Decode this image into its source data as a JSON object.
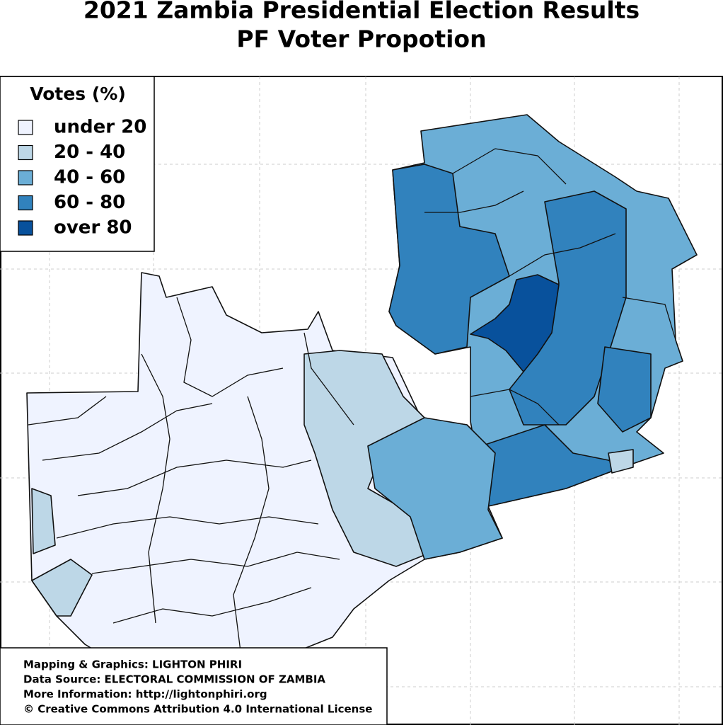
{
  "title": [
    "2021 Zambia Presidential Election Results",
    "PF Voter Propotion"
  ],
  "legend": {
    "title": "Votes (%)",
    "items": [
      {
        "label": "under 20",
        "color": "#eff3ff"
      },
      {
        "label": "20 - 40",
        "color": "#bdd7e7"
      },
      {
        "label": "40 - 60",
        "color": "#6baed6"
      },
      {
        "label": "60 - 80",
        "color": "#3182bd"
      },
      {
        "label": "over 80",
        "color": "#08519c"
      }
    ]
  },
  "credits": [
    "Mapping & Graphics: LIGHTON PHIRI",
    "Data Source: ELECTORAL COMMISSION OF ZAMBIA",
    "More Information: http://lightonphiri.org",
    "© Creative Commons Attribution 4.0 International License"
  ]
}
